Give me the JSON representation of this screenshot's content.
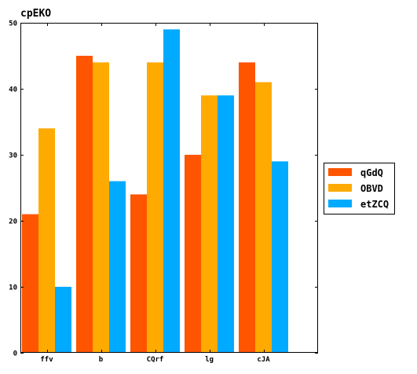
{
  "chart_data": {
    "type": "bar",
    "title": "cpEKO",
    "xlabel": "",
    "ylabel": "",
    "categories": [
      "ffv",
      "b",
      "CQrf",
      "lg",
      "cJA"
    ],
    "series": [
      {
        "name": "qGdQ",
        "color": "#ff5500",
        "values": [
          21,
          45,
          24,
          30,
          44
        ]
      },
      {
        "name": "OBVD",
        "color": "#ffaa00",
        "values": [
          34,
          44,
          44,
          39,
          41
        ]
      },
      {
        "name": "etZCQ",
        "color": "#00aaff",
        "values": [
          10,
          26,
          49,
          39,
          29
        ]
      }
    ],
    "ylim": [
      0,
      50
    ],
    "yticks": [
      0,
      10,
      20,
      30,
      40,
      50
    ],
    "grid": false,
    "legend_position": "right"
  }
}
